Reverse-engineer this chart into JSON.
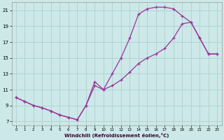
{
  "xlabel": "Windchill (Refroidissement éolien,°C)",
  "bg_color": "#cce8e8",
  "grid_color": "#b0d0d0",
  "line_color": "#993399",
  "xlim": [
    -0.5,
    23.5
  ],
  "ylim": [
    6.5,
    22.0
  ],
  "xticks": [
    0,
    1,
    2,
    3,
    4,
    5,
    6,
    7,
    8,
    9,
    10,
    11,
    12,
    13,
    14,
    15,
    16,
    17,
    18,
    19,
    20,
    21,
    22,
    23
  ],
  "yticks": [
    7,
    9,
    11,
    13,
    15,
    17,
    19,
    21
  ],
  "curve1_x": [
    0,
    1,
    2,
    3,
    4,
    5,
    6,
    7,
    8,
    9,
    10,
    11,
    12,
    13,
    14,
    15,
    16,
    17,
    18,
    19,
    20,
    21,
    22,
    23
  ],
  "curve1_y": [
    10,
    9.5,
    9.0,
    8.7,
    8.3,
    7.8,
    7.5,
    7.2,
    9.0,
    12.0,
    11.0,
    13.0,
    15.0,
    17.5,
    20.5,
    21.2,
    21.4,
    21.4,
    21.2,
    20.3,
    19.5,
    17.5,
    15.5,
    15.5
  ],
  "curve2_x": [
    0,
    1,
    2,
    3,
    4,
    5,
    6,
    7,
    8,
    9,
    10,
    11,
    12,
    13,
    14,
    15,
    16,
    17,
    18,
    19,
    20,
    21,
    22,
    23
  ],
  "curve2_y": [
    10,
    9.5,
    9.0,
    8.7,
    8.3,
    7.8,
    7.5,
    7.2,
    9.0,
    11.5,
    11.0,
    11.5,
    12.2,
    13.2,
    14.3,
    15.0,
    15.5,
    16.2,
    17.5,
    19.3,
    19.5,
    17.5,
    15.5,
    15.5
  ]
}
